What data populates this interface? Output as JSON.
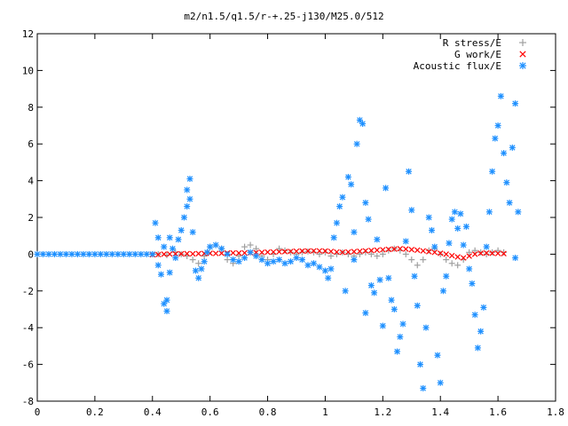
{
  "chart_data": {
    "type": "scatter",
    "title": "m2/n1.5/q1.5/r-+.25-j130/M25.0/512",
    "xlabel": "",
    "ylabel": "",
    "xlim": [
      0,
      1.8
    ],
    "ylim": [
      -8,
      12
    ],
    "x_ticks": [
      "0",
      "0.2",
      "0.4",
      "0.6",
      "0.8",
      "1",
      "1.2",
      "1.4",
      "1.6",
      "1.8"
    ],
    "y_ticks": [
      "-8",
      "-6",
      "-4",
      "-2",
      "0",
      "2",
      "4",
      "6",
      "8",
      "10",
      "12"
    ],
    "legend_position": "top-right",
    "grid": false,
    "series": [
      {
        "name": "R stress/E",
        "color": "#a0a0a0",
        "marker": "plus",
        "points": [
          [
            0.42,
            0.0
          ],
          [
            0.45,
            -0.05
          ],
          [
            0.48,
            0.1
          ],
          [
            0.5,
            0.0
          ],
          [
            0.52,
            -0.1
          ],
          [
            0.54,
            -0.3
          ],
          [
            0.56,
            -0.5
          ],
          [
            0.58,
            -0.1
          ],
          [
            0.6,
            0.4
          ],
          [
            0.62,
            0.5
          ],
          [
            0.64,
            0.3
          ],
          [
            0.66,
            -0.3
          ],
          [
            0.68,
            -0.5
          ],
          [
            0.7,
            -0.1
          ],
          [
            0.72,
            0.4
          ],
          [
            0.74,
            0.5
          ],
          [
            0.76,
            0.3
          ],
          [
            0.78,
            -0.1
          ],
          [
            0.8,
            -0.3
          ],
          [
            0.82,
            0.0
          ],
          [
            0.84,
            0.3
          ],
          [
            0.86,
            0.2
          ],
          [
            0.88,
            0.1
          ],
          [
            0.9,
            0.0
          ],
          [
            0.92,
            0.1
          ],
          [
            0.94,
            0.15
          ],
          [
            0.96,
            0.1
          ],
          [
            0.98,
            0.0
          ],
          [
            1.0,
            0.1
          ],
          [
            1.02,
            -0.1
          ],
          [
            1.04,
            0.0
          ],
          [
            1.06,
            0.1
          ],
          [
            1.08,
            0.0
          ],
          [
            1.1,
            -0.1
          ],
          [
            1.12,
            0.0
          ],
          [
            1.14,
            0.1
          ],
          [
            1.16,
            0.0
          ],
          [
            1.18,
            -0.1
          ],
          [
            1.2,
            0.0
          ],
          [
            1.22,
            0.2
          ],
          [
            1.24,
            0.3
          ],
          [
            1.26,
            0.2
          ],
          [
            1.28,
            0.0
          ],
          [
            1.3,
            -0.3
          ],
          [
            1.32,
            -0.6
          ],
          [
            1.34,
            -0.3
          ],
          [
            1.36,
            0.2
          ],
          [
            1.38,
            0.3
          ],
          [
            1.4,
            0.0
          ],
          [
            1.42,
            -0.3
          ],
          [
            1.44,
            -0.5
          ],
          [
            1.46,
            -0.6
          ],
          [
            1.48,
            -0.3
          ],
          [
            1.5,
            0.1
          ],
          [
            1.52,
            0.2
          ],
          [
            1.54,
            0.1
          ],
          [
            1.56,
            0.0
          ],
          [
            1.58,
            0.1
          ],
          [
            1.6,
            0.2
          ],
          [
            1.62,
            0.1
          ]
        ]
      },
      {
        "name": "G work/E",
        "color": "#ff0000",
        "marker": "cross",
        "points": [
          [
            0.4,
            -0.03
          ],
          [
            0.42,
            -0.02
          ],
          [
            0.44,
            0.0
          ],
          [
            0.46,
            0.01
          ],
          [
            0.48,
            0.02
          ],
          [
            0.5,
            0.02
          ],
          [
            0.52,
            0.03
          ],
          [
            0.54,
            0.02
          ],
          [
            0.56,
            0.03
          ],
          [
            0.58,
            0.04
          ],
          [
            0.6,
            0.05
          ],
          [
            0.62,
            0.04
          ],
          [
            0.64,
            0.05
          ],
          [
            0.66,
            0.06
          ],
          [
            0.68,
            0.07
          ],
          [
            0.7,
            0.06
          ],
          [
            0.72,
            0.07
          ],
          [
            0.74,
            0.08
          ],
          [
            0.76,
            0.09
          ],
          [
            0.78,
            0.1
          ],
          [
            0.8,
            0.11
          ],
          [
            0.82,
            0.12
          ],
          [
            0.84,
            0.13
          ],
          [
            0.86,
            0.14
          ],
          [
            0.88,
            0.15
          ],
          [
            0.9,
            0.16
          ],
          [
            0.92,
            0.17
          ],
          [
            0.94,
            0.17
          ],
          [
            0.96,
            0.18
          ],
          [
            0.98,
            0.18
          ],
          [
            1.0,
            0.17
          ],
          [
            1.02,
            0.15
          ],
          [
            1.04,
            0.12
          ],
          [
            1.06,
            0.1
          ],
          [
            1.08,
            0.12
          ],
          [
            1.1,
            0.14
          ],
          [
            1.12,
            0.16
          ],
          [
            1.14,
            0.18
          ],
          [
            1.16,
            0.2
          ],
          [
            1.18,
            0.22
          ],
          [
            1.2,
            0.24
          ],
          [
            1.22,
            0.26
          ],
          [
            1.24,
            0.28
          ],
          [
            1.26,
            0.3
          ],
          [
            1.28,
            0.28
          ],
          [
            1.3,
            0.25
          ],
          [
            1.32,
            0.22
          ],
          [
            1.34,
            0.18
          ],
          [
            1.36,
            0.14
          ],
          [
            1.38,
            0.1
          ],
          [
            1.4,
            0.05
          ],
          [
            1.42,
            0.0
          ],
          [
            1.44,
            -0.08
          ],
          [
            1.46,
            -0.15
          ],
          [
            1.48,
            -0.2
          ],
          [
            1.5,
            -0.1
          ],
          [
            1.52,
            0.0
          ],
          [
            1.54,
            0.05
          ],
          [
            1.56,
            0.06
          ],
          [
            1.58,
            0.05
          ],
          [
            1.6,
            0.04
          ],
          [
            1.62,
            0.03
          ]
        ]
      },
      {
        "name": "Acoustic flux/E",
        "color": "#1e90ff",
        "marker": "star",
        "points": [
          [
            0.41,
            1.7
          ],
          [
            0.42,
            0.9
          ],
          [
            0.42,
            -0.6
          ],
          [
            0.43,
            -1.1
          ],
          [
            0.44,
            0.4
          ],
          [
            0.44,
            -2.7
          ],
          [
            0.45,
            -3.1
          ],
          [
            0.45,
            -2.5
          ],
          [
            0.46,
            -1.0
          ],
          [
            0.46,
            0.9
          ],
          [
            0.47,
            0.3
          ],
          [
            0.48,
            -0.2
          ],
          [
            0.49,
            0.8
          ],
          [
            0.5,
            1.3
          ],
          [
            0.51,
            2.0
          ],
          [
            0.52,
            2.6
          ],
          [
            0.52,
            3.5
          ],
          [
            0.53,
            4.1
          ],
          [
            0.53,
            3.0
          ],
          [
            0.54,
            1.2
          ],
          [
            0.55,
            -0.9
          ],
          [
            0.56,
            -1.3
          ],
          [
            0.57,
            -0.8
          ],
          [
            0.58,
            -0.4
          ],
          [
            0.59,
            0.1
          ],
          [
            0.6,
            0.4
          ],
          [
            0.62,
            0.5
          ],
          [
            0.64,
            0.3
          ],
          [
            0.66,
            0.0
          ],
          [
            0.68,
            -0.3
          ],
          [
            0.7,
            -0.4
          ],
          [
            0.72,
            -0.2
          ],
          [
            0.74,
            0.1
          ],
          [
            0.76,
            -0.1
          ],
          [
            0.78,
            -0.3
          ],
          [
            0.8,
            -0.5
          ],
          [
            0.82,
            -0.4
          ],
          [
            0.84,
            -0.3
          ],
          [
            0.86,
            -0.5
          ],
          [
            0.88,
            -0.4
          ],
          [
            0.9,
            -0.2
          ],
          [
            0.92,
            -0.3
          ],
          [
            0.94,
            -0.6
          ],
          [
            0.96,
            -0.5
          ],
          [
            0.98,
            -0.7
          ],
          [
            1.0,
            -0.9
          ],
          [
            1.01,
            -1.3
          ],
          [
            1.02,
            -0.8
          ],
          [
            1.03,
            0.9
          ],
          [
            1.04,
            1.7
          ],
          [
            1.05,
            2.6
          ],
          [
            1.06,
            3.1
          ],
          [
            1.07,
            -2.0
          ],
          [
            1.08,
            4.2
          ],
          [
            1.09,
            3.8
          ],
          [
            1.1,
            1.2
          ],
          [
            1.1,
            -0.3
          ],
          [
            1.11,
            6.0
          ],
          [
            1.12,
            7.3
          ],
          [
            1.13,
            7.1
          ],
          [
            1.14,
            2.8
          ],
          [
            1.14,
            -3.2
          ],
          [
            1.15,
            1.9
          ],
          [
            1.16,
            -1.7
          ],
          [
            1.17,
            -2.1
          ],
          [
            1.18,
            0.8
          ],
          [
            1.19,
            -1.4
          ],
          [
            1.2,
            -3.9
          ],
          [
            1.21,
            3.6
          ],
          [
            1.22,
            -1.3
          ],
          [
            1.23,
            -2.5
          ],
          [
            1.24,
            -3.0
          ],
          [
            1.25,
            -5.3
          ],
          [
            1.26,
            -4.5
          ],
          [
            1.27,
            -3.8
          ],
          [
            1.28,
            0.7
          ],
          [
            1.29,
            4.5
          ],
          [
            1.3,
            2.4
          ],
          [
            1.31,
            -1.2
          ],
          [
            1.32,
            -2.8
          ],
          [
            1.33,
            -6.0
          ],
          [
            1.34,
            -7.3
          ],
          [
            1.35,
            -4.0
          ],
          [
            1.36,
            2.0
          ],
          [
            1.37,
            1.3
          ],
          [
            1.38,
            0.4
          ],
          [
            1.39,
            -5.5
          ],
          [
            1.4,
            -7.0
          ],
          [
            1.41,
            -2.0
          ],
          [
            1.42,
            -1.2
          ],
          [
            1.43,
            0.6
          ],
          [
            1.44,
            1.9
          ],
          [
            1.45,
            2.3
          ],
          [
            1.46,
            1.4
          ],
          [
            1.47,
            2.2
          ],
          [
            1.48,
            0.5
          ],
          [
            1.49,
            1.5
          ],
          [
            1.5,
            -0.8
          ],
          [
            1.51,
            -1.6
          ],
          [
            1.52,
            -3.3
          ],
          [
            1.53,
            -5.1
          ],
          [
            1.54,
            -4.2
          ],
          [
            1.55,
            -2.9
          ],
          [
            1.56,
            0.4
          ],
          [
            1.57,
            2.3
          ],
          [
            1.58,
            4.5
          ],
          [
            1.59,
            6.3
          ],
          [
            1.6,
            7.0
          ],
          [
            1.61,
            8.6
          ],
          [
            1.62,
            5.5
          ],
          [
            1.63,
            3.9
          ],
          [
            1.64,
            2.8
          ],
          [
            1.65,
            5.8
          ],
          [
            1.66,
            8.2
          ],
          [
            1.66,
            -0.2
          ],
          [
            1.67,
            2.3
          ]
        ]
      },
      {
        "name": "",
        "color": "#1e90ff",
        "marker": "star",
        "points": [
          [
            0.0,
            0.0
          ],
          [
            0.02,
            0.0
          ],
          [
            0.04,
            0.0
          ],
          [
            0.06,
            0.0
          ],
          [
            0.08,
            0.0
          ],
          [
            0.1,
            0.0
          ],
          [
            0.12,
            0.0
          ],
          [
            0.14,
            0.0
          ],
          [
            0.16,
            0.0
          ],
          [
            0.18,
            0.0
          ],
          [
            0.2,
            0.0
          ],
          [
            0.22,
            0.0
          ],
          [
            0.24,
            0.0
          ],
          [
            0.26,
            0.0
          ],
          [
            0.28,
            0.0
          ],
          [
            0.3,
            0.0
          ],
          [
            0.32,
            0.0
          ],
          [
            0.34,
            0.0
          ],
          [
            0.36,
            0.0
          ],
          [
            0.38,
            0.0
          ],
          [
            0.4,
            0.0
          ]
        ]
      }
    ]
  }
}
